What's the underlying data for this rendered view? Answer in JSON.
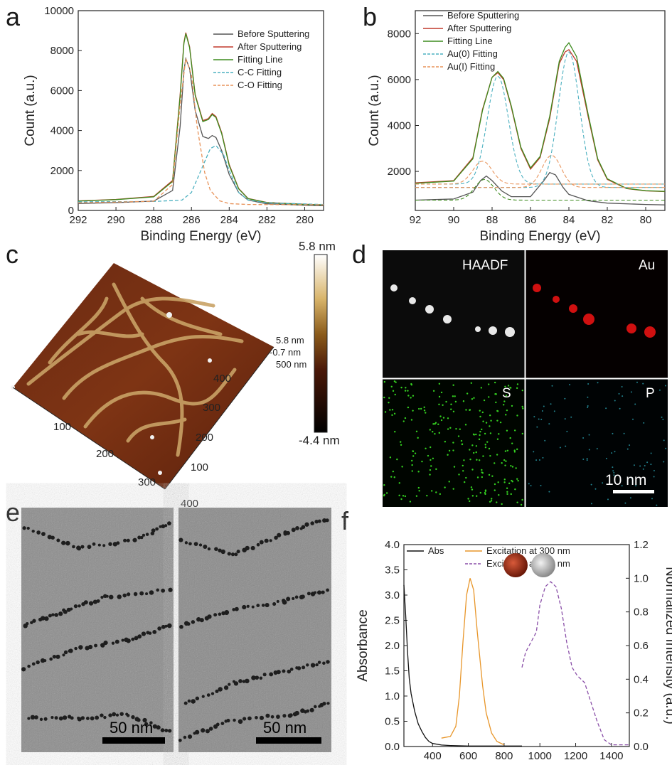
{
  "panels": {
    "a": "a",
    "b": "b",
    "c": "c",
    "d": "d",
    "e": "e",
    "f": "f"
  },
  "colors": {
    "before": "#555555",
    "after": "#c0392b",
    "fit": "#3d8b1e",
    "fit1": "#4bb0c0",
    "fit2": "#e8935a",
    "abs": "#111111",
    "exc300": "#e8962a",
    "exc808": "#8a4fa8"
  },
  "afm": {
    "colorbar_max": "5.8 nm",
    "colorbar_min": "-4.4 nm",
    "overlay_labels": [
      "5.8 nm",
      "-0.7 nm",
      "500 nm"
    ],
    "x_ticks": [
      "100",
      "200",
      "300",
      "400",
      "500 nm"
    ],
    "y_ticks": [
      "100",
      "200",
      "300",
      "400"
    ]
  },
  "eds": {
    "labels": [
      "HAADF",
      "Au",
      "S",
      "P"
    ],
    "scale_bar": "10 nm"
  },
  "tem": {
    "scale_bars": [
      "50 nm",
      "50 nm"
    ]
  },
  "chart_data": [
    {
      "id": "a",
      "type": "line",
      "xlabel": "Binding Energy (eV)",
      "ylabel": "Count (a.u.)",
      "xlim": [
        292,
        279
      ],
      "ylim": [
        0,
        10000
      ],
      "x_ticks": [
        292,
        290,
        288,
        286,
        284,
        282,
        280
      ],
      "y_ticks": [
        0,
        2000,
        4000,
        6000,
        8000,
        10000
      ],
      "legend": [
        "Before Sputtering",
        "After Sputtering",
        "Fitting Line",
        "C-C Fitting",
        "C-O Fitting"
      ],
      "series": [
        {
          "name": "Before Sputtering",
          "x": [
            292,
            290,
            288,
            287,
            286.6,
            286.4,
            286.3,
            286.1,
            285.8,
            285.4,
            285.1,
            284.9,
            284.7,
            284.4,
            284,
            283.5,
            283,
            282,
            280,
            279
          ],
          "y": [
            350,
            390,
            470,
            1000,
            4200,
            7000,
            7600,
            7100,
            5000,
            3700,
            3600,
            3750,
            3650,
            3000,
            1800,
            900,
            520,
            330,
            260,
            240
          ]
        },
        {
          "name": "After Sputtering",
          "x": [
            292,
            290,
            288,
            287,
            286.6,
            286.4,
            286.3,
            286.1,
            285.8,
            285.4,
            285.1,
            284.9,
            284.7,
            284.4,
            284,
            283.5,
            283,
            282,
            280,
            279
          ],
          "y": [
            480,
            550,
            700,
            1500,
            5800,
            8400,
            8900,
            8200,
            5800,
            4500,
            4600,
            4850,
            4700,
            3900,
            2300,
            1100,
            600,
            400,
            310,
            280
          ]
        },
        {
          "name": "Fitting Line",
          "x": [
            292,
            290,
            288,
            287,
            286.6,
            286.4,
            286.3,
            286.1,
            285.8,
            285.4,
            285.1,
            284.9,
            284.7,
            284.4,
            284,
            283.5,
            283,
            282,
            280,
            279
          ],
          "y": [
            470,
            540,
            680,
            1450,
            5700,
            8350,
            8850,
            8150,
            5750,
            4450,
            4550,
            4800,
            4650,
            3850,
            2250,
            1080,
            590,
            390,
            300,
            280
          ]
        },
        {
          "name": "C-C Fitting",
          "x": [
            292,
            288,
            286.5,
            286,
            285.5,
            285,
            284.7,
            284.3,
            284,
            283.5,
            283,
            282,
            279
          ],
          "y": [
            430,
            450,
            520,
            900,
            2000,
            3100,
            3250,
            2800,
            2000,
            900,
            520,
            380,
            300
          ]
        },
        {
          "name": "C-O Fitting",
          "x": [
            292,
            288,
            287,
            286.6,
            286.3,
            286,
            285.7,
            285.3,
            285,
            284.5,
            284,
            283,
            279
          ],
          "y": [
            380,
            460,
            1300,
            5300,
            7600,
            6800,
            4200,
            1900,
            1000,
            480,
            340,
            300,
            280
          ]
        }
      ]
    },
    {
      "id": "b",
      "type": "line",
      "xlabel": "Binding Energy (eV)",
      "ylabel": "Count (a.u.)",
      "xlim": [
        92,
        79
      ],
      "ylim": [
        300,
        9000
      ],
      "x_ticks": [
        92,
        90,
        88,
        86,
        84,
        82,
        80
      ],
      "y_ticks": [
        2000,
        4000,
        6000,
        8000
      ],
      "legend": [
        "Before Sputtering",
        "After Sputtering",
        "Fitting Line",
        "Au(0) Fitting",
        "Au(I) Fitting"
      ],
      "series": [
        {
          "name": "Before Sputtering",
          "x": [
            92,
            90,
            89,
            88.6,
            88.3,
            88,
            87.5,
            87,
            86,
            85.3,
            85,
            84.7,
            84.3,
            84,
            83,
            82,
            80,
            79
          ],
          "y": [
            750,
            800,
            1100,
            1600,
            1800,
            1600,
            1150,
            900,
            900,
            1600,
            1950,
            1850,
            1300,
            1000,
            720,
            620,
            560,
            540
          ]
        },
        {
          "name": "After Sputtering",
          "x": [
            92,
            90,
            89,
            88.5,
            88,
            87.7,
            87.4,
            87,
            86.5,
            86,
            85.5,
            85,
            84.5,
            84.2,
            84,
            83.6,
            83,
            82.5,
            82,
            81,
            80,
            79
          ],
          "y": [
            1500,
            1600,
            2600,
            4700,
            6100,
            6300,
            6000,
            4800,
            3000,
            2100,
            2600,
            4300,
            6700,
            7200,
            7300,
            6800,
            4400,
            2500,
            1650,
            1250,
            1150,
            1120
          ]
        },
        {
          "name": "Fitting Line",
          "x": [
            92,
            90,
            89,
            88.5,
            88,
            87.7,
            87.4,
            87,
            86.5,
            86,
            85.5,
            85,
            84.5,
            84.2,
            84,
            83.6,
            83,
            82.5,
            82,
            81,
            80,
            79
          ],
          "y": [
            1480,
            1580,
            2550,
            4650,
            6100,
            6350,
            6050,
            4850,
            3050,
            2150,
            2650,
            4400,
            6800,
            7400,
            7600,
            7000,
            4500,
            2550,
            1680,
            1260,
            1160,
            1130
          ]
        }
      ]
    },
    {
      "id": "f",
      "type": "line",
      "xlabel": "Wavelength (nm)",
      "ylabel": "Absorbance",
      "ylabel_right": "Normalized Intensity (a.u.)",
      "xlim": [
        240,
        1500
      ],
      "ylim": [
        0,
        4.0
      ],
      "ylim_right": [
        0,
        1.2
      ],
      "x_ticks": [
        400,
        600,
        800,
        1000,
        1200,
        1400
      ],
      "y_ticks": [
        0.0,
        0.5,
        1.0,
        1.5,
        2.0,
        2.5,
        3.0,
        3.5,
        4.0
      ],
      "y_ticks_right": [
        0.0,
        0.2,
        0.4,
        0.6,
        0.8,
        1.0,
        1.2
      ],
      "legend": [
        "Abs",
        "Excitation at 300 nm",
        "Excitation at 808 nm"
      ],
      "series": [
        {
          "name": "Abs",
          "axis": "left",
          "x": [
            240,
            250,
            260,
            270,
            280,
            300,
            320,
            340,
            360,
            380,
            400,
            450,
            500,
            600,
            700,
            800,
            900
          ],
          "y": [
            3.2,
            2.6,
            1.9,
            1.35,
            1.05,
            0.7,
            0.45,
            0.3,
            0.18,
            0.1,
            0.06,
            0.03,
            0.02,
            0.01,
            0.01,
            0.01,
            0.01
          ]
        },
        {
          "name": "Excitation at 300 nm",
          "axis": "right",
          "x": [
            450,
            500,
            530,
            550,
            570,
            590,
            610,
            630,
            650,
            680,
            700,
            730,
            760,
            800
          ],
          "y": [
            0.05,
            0.06,
            0.12,
            0.3,
            0.62,
            0.9,
            1.0,
            0.93,
            0.68,
            0.36,
            0.2,
            0.08,
            0.03,
            0.01
          ]
        },
        {
          "name": "Excitation at 808 nm",
          "axis": "right",
          "x": [
            900,
            920,
            950,
            980,
            1000,
            1030,
            1060,
            1090,
            1120,
            1150,
            1180,
            1210,
            1250,
            1280,
            1320,
            1360,
            1400,
            1450,
            1500
          ],
          "y": [
            0.47,
            0.56,
            0.62,
            0.68,
            0.84,
            0.95,
            0.98,
            0.95,
            0.82,
            0.62,
            0.47,
            0.42,
            0.38,
            0.28,
            0.15,
            0.04,
            0.01,
            0.01,
            0.01
          ]
        }
      ]
    }
  ]
}
